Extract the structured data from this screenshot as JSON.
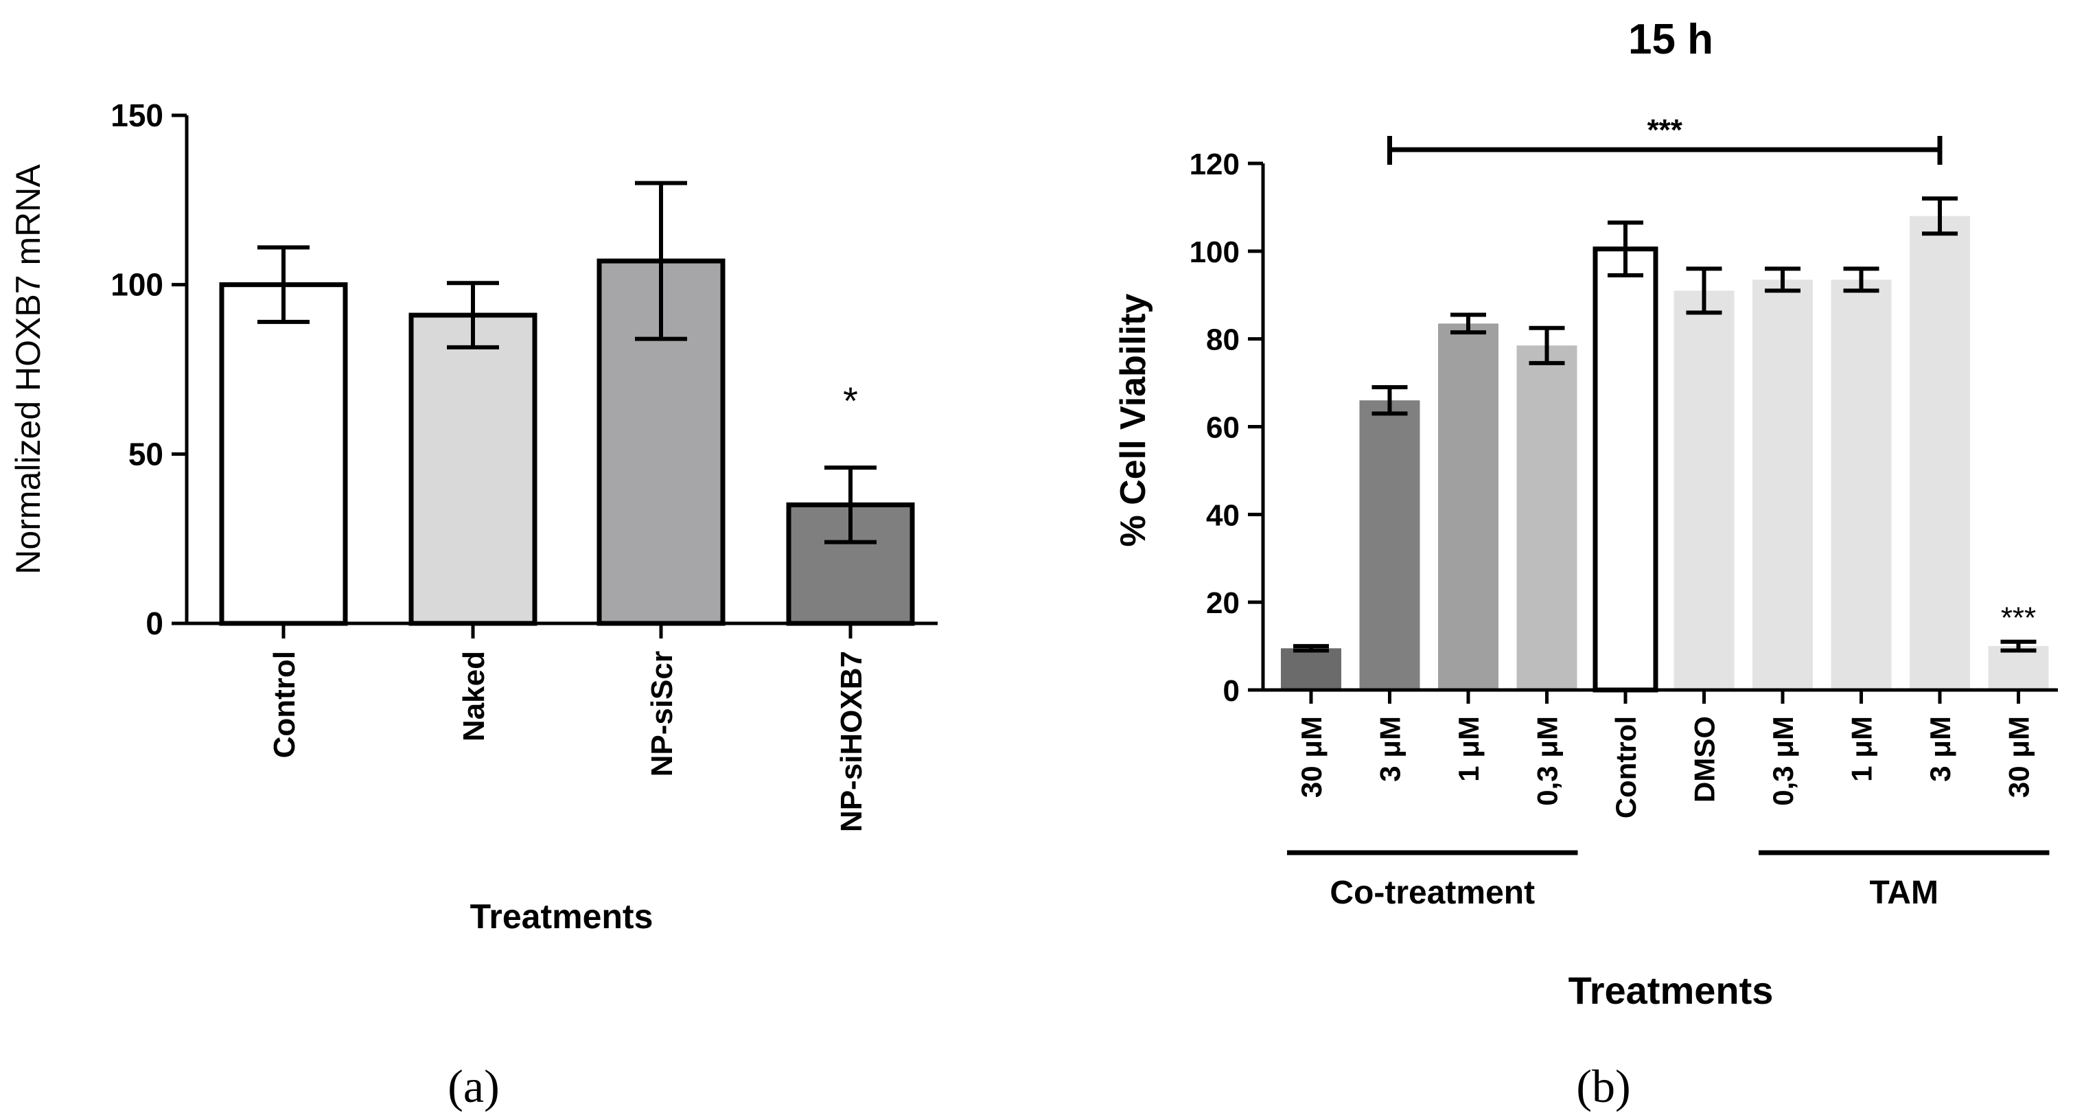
{
  "panel_labels": [
    "(a)",
    "(b)"
  ],
  "chart_data": [
    {
      "type": "bar",
      "panel": "(a)",
      "title": "",
      "xlabel": "Treatments",
      "ylabel": "Normalized HOXB7 mRNA",
      "ylim": [
        0,
        150
      ],
      "yticks": [
        0,
        50,
        100,
        150
      ],
      "grid": false,
      "categories": [
        "Control",
        "Naked",
        "NP-siScr",
        "NP-siHOXB7"
      ],
      "values": [
        100,
        91,
        107,
        35
      ],
      "errors": [
        11,
        9.5,
        23,
        11
      ],
      "colors": [
        "#ffffff",
        "#d9d9d9",
        "#a6a6a8",
        "#7f7f7f"
      ],
      "annotations": [
        {
          "category": "NP-siHOXB7",
          "text": "*"
        }
      ]
    },
    {
      "type": "bar",
      "panel": "(b)",
      "title": "15 h",
      "xlabel": "Treatments",
      "ylabel": "% Cell Viability",
      "ylim": [
        0,
        120
      ],
      "yticks": [
        0,
        20,
        40,
        60,
        80,
        100,
        120
      ],
      "grid": false,
      "categories": [
        "30 μM",
        "3 μM",
        "1 μM",
        "0,3 μM",
        "Control",
        "DMSO",
        "0,3 μM",
        "1 μM",
        "3 μM",
        "30 μM"
      ],
      "values": [
        9.5,
        66,
        83.5,
        78.5,
        100.5,
        91,
        93.5,
        93.5,
        108,
        10
      ],
      "errors": [
        0.5,
        3,
        2,
        4,
        6,
        5,
        2.5,
        2.5,
        4,
        1
      ],
      "colors": [
        "#6b6b6b",
        "#808080",
        "#a0a0a0",
        "#bdbdbd",
        "#ffffff",
        "#e3e3e3",
        "#e3e3e3",
        "#e3e3e3",
        "#e3e3e3",
        "#e3e3e3"
      ],
      "groups": [
        {
          "label": "Co-treatment",
          "from": 0,
          "to": 3
        },
        {
          "label": "TAM",
          "from": 6,
          "to": 9
        }
      ],
      "annotations": [
        {
          "type": "bracket",
          "from": 1,
          "to": 8,
          "text": "***"
        },
        {
          "category_index": 9,
          "text": "***"
        }
      ]
    }
  ]
}
